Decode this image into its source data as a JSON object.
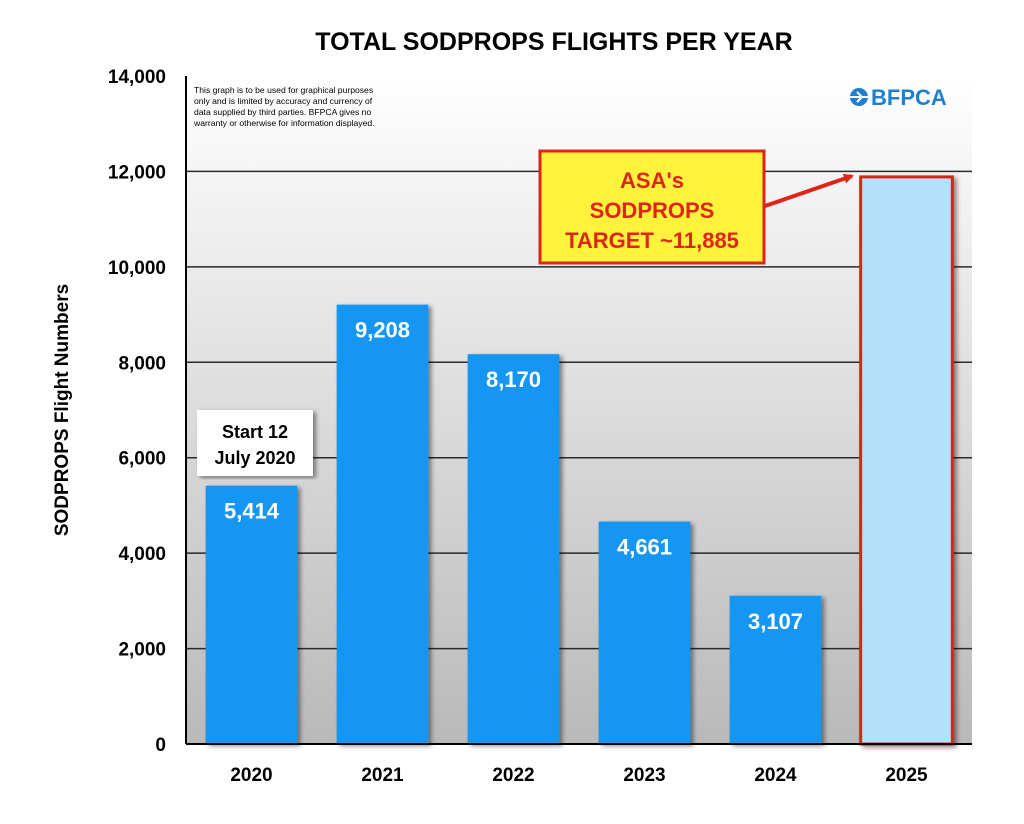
{
  "chart_data": {
    "type": "bar",
    "title": "TOTAL SODPROPS FLIGHTS PER YEAR",
    "xlabel": "",
    "ylabel": "SODPROPS Flight Numbers",
    "categories": [
      "2020",
      "2021",
      "2022",
      "2023",
      "2024",
      "2025"
    ],
    "values": [
      5414,
      9208,
      8170,
      4661,
      3107,
      11885
    ],
    "value_labels": [
      "5,414",
      "9,208",
      "8,170",
      "4,661",
      "3,107",
      ""
    ],
    "ylim": [
      0,
      14000
    ],
    "yticks": [
      0,
      2000,
      4000,
      6000,
      8000,
      10000,
      12000,
      14000
    ],
    "ytick_labels": [
      "0",
      "2,000",
      "4,000",
      "6,000",
      "8,000",
      "10,000",
      "12,000",
      "14,000"
    ],
    "grid": true,
    "bar_color": "#1496f3",
    "target_bar_color": "#b3e1fb",
    "target_bar_border": "#e02418",
    "annotations": {
      "disclaimer": [
        "This graph is to be used for graphical purposes",
        "only and is limited by accuracy and currency of",
        "data supplied by third parties. BFPCA gives no",
        "warranty or otherwise for information displayed."
      ],
      "logo_text": "BFPCA",
      "callout_lines": [
        "ASA's",
        "SODPROPS",
        "TARGET ~11,885"
      ],
      "start_note_lines": [
        "Start 12",
        "July 2020"
      ]
    }
  }
}
